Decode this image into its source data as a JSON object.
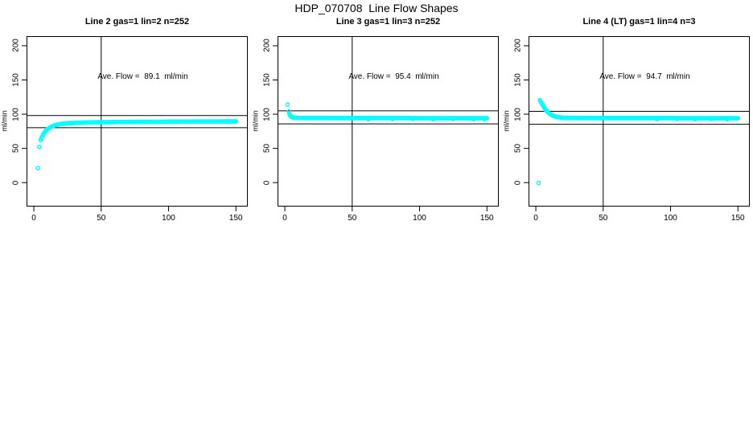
{
  "page": {
    "title": "HDP_070708  Line Flow Shapes"
  },
  "chart_data": [
    {
      "type": "scatter",
      "title": "Line 2 gas=1 lin=2 n=252",
      "ylabel": "ml/min",
      "annotation": "Ave. Flow =  89.1  ml/min",
      "ave_flow": 89.1,
      "n_points": 252,
      "marker_color": "#00FFFF",
      "x_ticks": [
        0,
        50,
        100,
        150
      ],
      "y_ticks": [
        0,
        50,
        100,
        150,
        200
      ],
      "xlim": [
        -5.4,
        158.8
      ],
      "ylim": [
        -35,
        214
      ],
      "vline_x": 50,
      "hlines": [
        98.0,
        80.2
      ],
      "isolated_points": [
        [
          3,
          21
        ],
        [
          4,
          52
        ]
      ],
      "curve_keypoints": [
        [
          5,
          62
        ],
        [
          6,
          66.5
        ],
        [
          7,
          70.5
        ],
        [
          8,
          73.5
        ],
        [
          9,
          76
        ],
        [
          10,
          78
        ],
        [
          12,
          80.5
        ],
        [
          14,
          82.5
        ],
        [
          16,
          84
        ],
        [
          18,
          85
        ],
        [
          20,
          85.8
        ],
        [
          25,
          86.8
        ],
        [
          30,
          87.3
        ],
        [
          40,
          87.9
        ],
        [
          50,
          88.2
        ],
        [
          60,
          88.5
        ],
        [
          80,
          88.8
        ],
        [
          100,
          89
        ],
        [
          120,
          89.2
        ],
        [
          150,
          89.4
        ]
      ],
      "point_step": 0.58
    },
    {
      "type": "scatter",
      "title": "Line 3 gas=1 lin=3 n=252",
      "ylabel": "ml/min",
      "annotation": "Ave. Flow =  95.4  ml/min",
      "ave_flow": 95.4,
      "n_points": 252,
      "marker_color": "#00FFFF",
      "x_ticks": [
        0,
        50,
        100,
        150
      ],
      "y_ticks": [
        0,
        50,
        100,
        150,
        200
      ],
      "xlim": [
        -5.4,
        158.8
      ],
      "ylim": [
        -35,
        214
      ],
      "vline_x": 50,
      "hlines": [
        104.9,
        85.9
      ],
      "isolated_points": [
        [
          2,
          114
        ],
        [
          62,
          92.6
        ],
        [
          80,
          92.9
        ],
        [
          95,
          93.1
        ],
        [
          110,
          92.7
        ],
        [
          125,
          93.0
        ],
        [
          140,
          92.6
        ],
        [
          148,
          92.5
        ]
      ],
      "curve_keypoints": [
        [
          3,
          104
        ],
        [
          3.4,
          100.5
        ],
        [
          3.8,
          98.5
        ],
        [
          4.3,
          97
        ],
        [
          5,
          96
        ],
        [
          6,
          95.3
        ],
        [
          7,
          95
        ],
        [
          8,
          94.8
        ],
        [
          10,
          94.6
        ],
        [
          14,
          94.5
        ],
        [
          20,
          94.4
        ],
        [
          30,
          94.4
        ],
        [
          50,
          94.3
        ],
        [
          80,
          94.3
        ],
        [
          110,
          94.2
        ],
        [
          150,
          94.1
        ]
      ],
      "point_step": 0.58
    },
    {
      "type": "scatter",
      "title": "Line 4 (LT) gas=1 lin=4 n=3",
      "ylabel": "ml/min",
      "annotation": "Ave. Flow =  94.7  ml/min",
      "ave_flow": 94.7,
      "n_points": 3,
      "marker_color": "#00FFFF",
      "x_ticks": [
        0,
        50,
        100,
        150
      ],
      "y_ticks": [
        0,
        50,
        100,
        150,
        200
      ],
      "xlim": [
        -5.4,
        158.8
      ],
      "ylim": [
        -35,
        214
      ],
      "vline_x": 50,
      "hlines": [
        104.2,
        85.2
      ],
      "isolated_points": [
        [
          2,
          -0.5
        ],
        [
          90,
          92.6
        ],
        [
          105,
          92.9
        ],
        [
          118,
          92.6
        ],
        [
          130,
          93.0
        ],
        [
          142,
          92.5
        ]
      ],
      "curve_keypoints": [
        [
          3,
          120.5
        ],
        [
          3.5,
          118.8
        ],
        [
          4,
          117
        ],
        [
          4.5,
          115.3
        ],
        [
          5,
          113.6
        ],
        [
          5.5,
          112
        ],
        [
          6,
          110.4
        ],
        [
          6.5,
          108.9
        ],
        [
          7,
          107.5
        ],
        [
          7.5,
          106.2
        ],
        [
          8,
          105
        ],
        [
          8.5,
          103.8
        ],
        [
          9,
          102.8
        ],
        [
          9.5,
          101.8
        ],
        [
          10,
          101
        ],
        [
          11,
          99.6
        ],
        [
          12,
          98.5
        ],
        [
          13,
          97.6
        ],
        [
          14,
          96.9
        ],
        [
          15,
          96.3
        ],
        [
          16,
          95.8
        ],
        [
          18,
          95.2
        ],
        [
          20,
          94.9
        ],
        [
          25,
          94.6
        ],
        [
          30,
          94.5
        ],
        [
          40,
          94.4
        ],
        [
          60,
          94.3
        ],
        [
          90,
          94.3
        ],
        [
          120,
          94.2
        ],
        [
          150,
          94
        ]
      ],
      "point_step": 0.58
    }
  ]
}
